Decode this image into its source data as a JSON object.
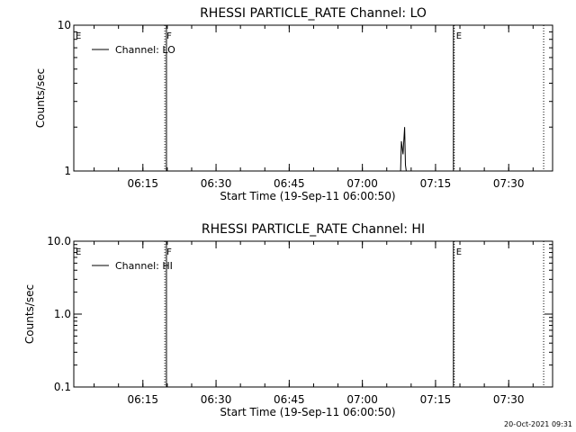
{
  "footer": {
    "timestamp": "20-Oct-2021 09:31"
  },
  "chart_data": [
    {
      "type": "line",
      "title": "RHESSI PARTICLE_RATE Channel: LO",
      "xlabel": "Start Time (19-Sep-11 06:00:50)",
      "ylabel": "Counts/sec",
      "y_scale": "log",
      "ylim": [
        1,
        10
      ],
      "y_ticks": [
        1,
        10
      ],
      "y_tick_labels": [
        "1",
        "10"
      ],
      "xlim": [
        "06:00:50",
        "07:39:00"
      ],
      "x_ticks": [
        "06:15",
        "06:30",
        "06:45",
        "07:00",
        "07:15",
        "07:30"
      ],
      "legend": {
        "position": "top-left",
        "entries": [
          "Channel: LO"
        ]
      },
      "series": [
        {
          "name": "Channel: LO",
          "x": [
            "07:07:50",
            "07:08:00",
            "07:08:20",
            "07:08:40",
            "07:08:50",
            "07:09:00"
          ],
          "y": [
            1,
            1.6,
            1.3,
            2.0,
            1.1,
            1
          ]
        }
      ],
      "markers": [
        {
          "label": "E",
          "time": "06:00:50",
          "style": "solid"
        },
        {
          "label": "F",
          "time": "06:19:30",
          "style": "dotted"
        },
        {
          "label": "",
          "time": "06:19:50",
          "style": "solid"
        },
        {
          "label": "",
          "time": "07:18:40",
          "style": "solid"
        },
        {
          "label": "E",
          "time": "07:18:50",
          "style": "dotted"
        },
        {
          "label": "",
          "time": "07:37:10",
          "style": "dotted"
        }
      ]
    },
    {
      "type": "line",
      "title": "RHESSI PARTICLE_RATE Channel: HI",
      "xlabel": "Start Time (19-Sep-11 06:00:50)",
      "ylabel": "Counts/sec",
      "y_scale": "log",
      "ylim": [
        0.1,
        10
      ],
      "y_ticks": [
        0.1,
        1,
        10
      ],
      "y_tick_labels": [
        "0.1",
        "1.0",
        "10.0"
      ],
      "xlim": [
        "06:00:50",
        "07:39:00"
      ],
      "x_ticks": [
        "06:15",
        "06:30",
        "06:45",
        "07:00",
        "07:15",
        "07:30"
      ],
      "legend": {
        "position": "top-left",
        "entries": [
          "Channel: HI"
        ]
      },
      "series": [
        {
          "name": "Channel: HI",
          "x": [],
          "y": []
        }
      ],
      "markers": [
        {
          "label": "E",
          "time": "06:00:50",
          "style": "solid"
        },
        {
          "label": "F",
          "time": "06:19:30",
          "style": "dotted"
        },
        {
          "label": "",
          "time": "06:19:50",
          "style": "solid"
        },
        {
          "label": "",
          "time": "07:18:40",
          "style": "solid"
        },
        {
          "label": "E",
          "time": "07:18:50",
          "style": "dotted"
        },
        {
          "label": "",
          "time": "07:37:10",
          "style": "dotted"
        }
      ]
    }
  ]
}
